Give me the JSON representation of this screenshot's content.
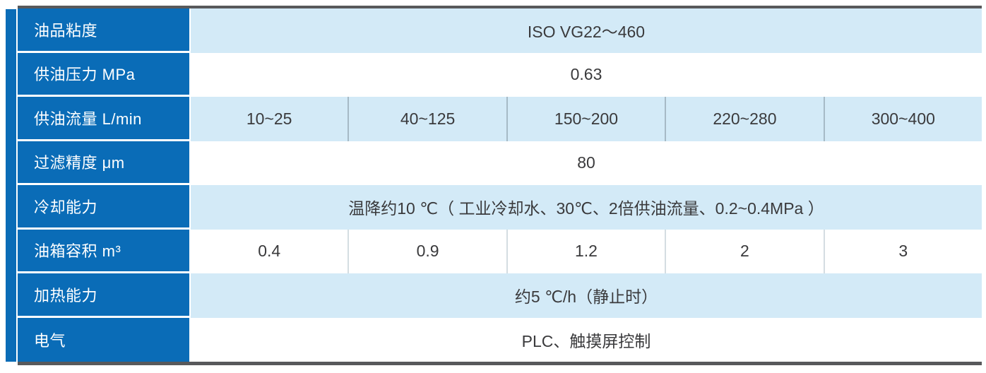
{
  "table": {
    "colors": {
      "header_blue": "#0a6cb7",
      "row_light_blue": "#d3eaf7",
      "row_white": "#ffffff",
      "border_dark": "#58595b",
      "divider_on_blue": "#a6bac6",
      "divider_on_white": "#d4dde2",
      "text_dark": "#3a3a3c",
      "text_white": "#ffffff"
    },
    "rows": [
      {
        "label": "油品粘度",
        "type": "single",
        "value": "ISO VG22～460"
      },
      {
        "label": "供油压力 MPa",
        "type": "single",
        "value": "0.63"
      },
      {
        "label": "供油流量 L/min",
        "type": "multi",
        "values": [
          "10~25",
          "40~125",
          "150~200",
          "220~280",
          "300~400"
        ]
      },
      {
        "label": "过滤精度 μm",
        "type": "single",
        "value": "80"
      },
      {
        "label": "冷却能力",
        "type": "single",
        "value": "温降约10 ℃（ 工业冷却水、30℃、2倍供油流量、0.2~0.4MPa ）"
      },
      {
        "label": "油箱容积 m³",
        "type": "multi",
        "values": [
          "0.4",
          "0.9",
          "1.2",
          "2",
          "3"
        ]
      },
      {
        "label": "加热能力",
        "type": "single",
        "value": "约5 ℃/h（静止时）"
      },
      {
        "label": "电气",
        "type": "single",
        "value": "PLC、触摸屏控制"
      }
    ]
  }
}
